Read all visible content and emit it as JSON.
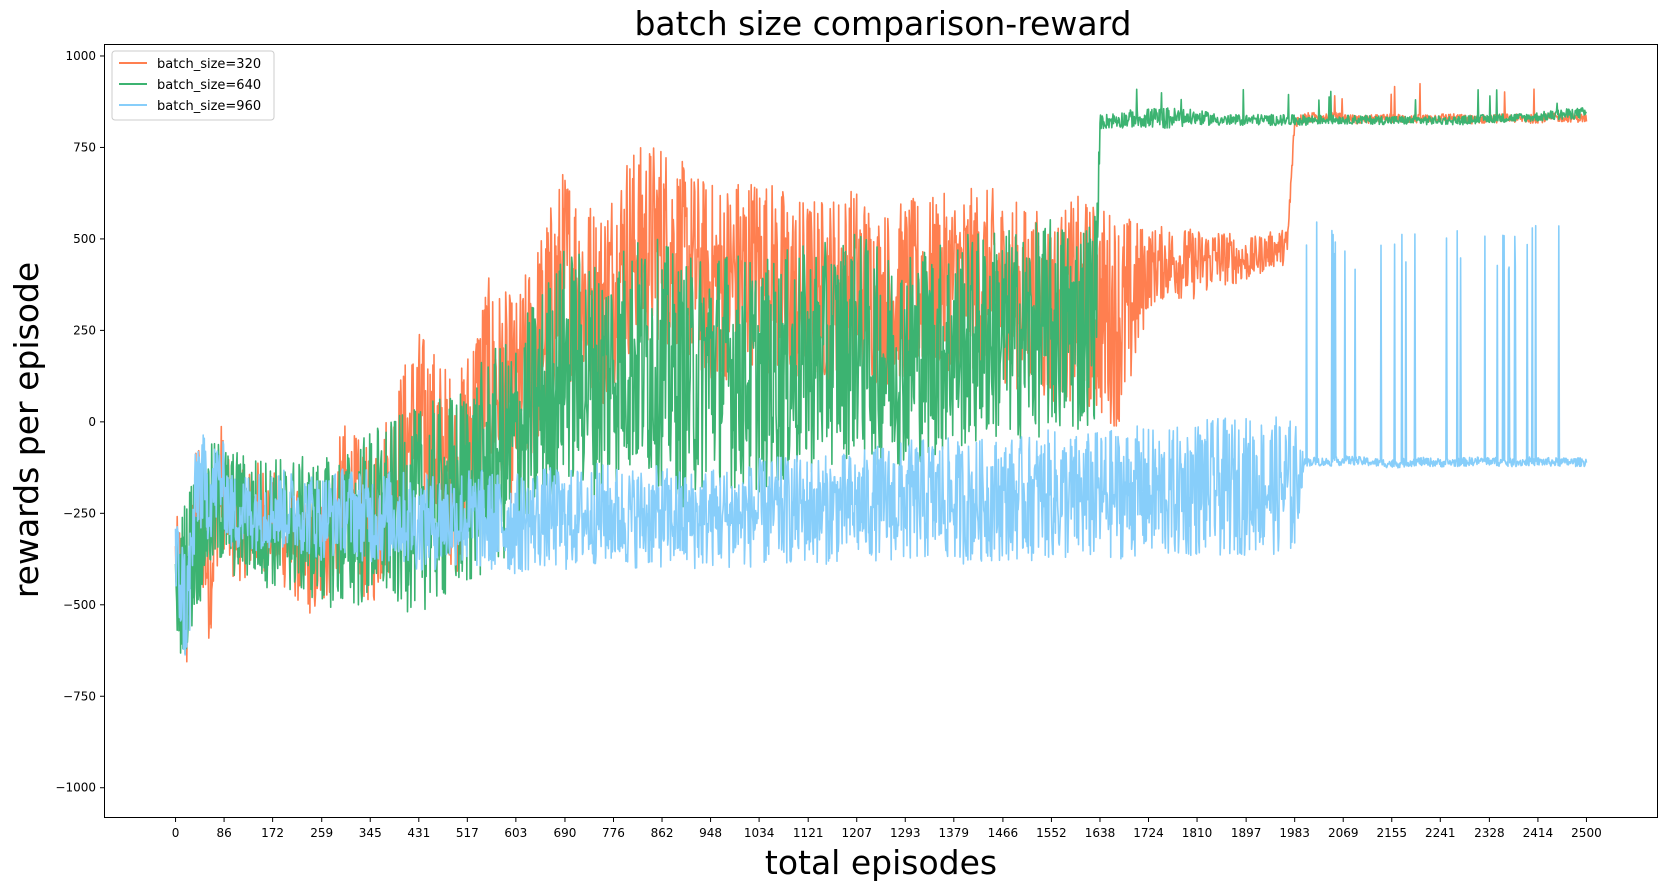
{
  "chart_data": {
    "type": "line",
    "title": "batch size comparison-reward",
    "xlabel": "total episodes",
    "ylabel": "rewards per episode",
    "xlim": [
      -125,
      2625
    ],
    "ylim": [
      -1080,
      1030
    ],
    "x_ticks": [
      0,
      86,
      172,
      259,
      345,
      431,
      517,
      603,
      690,
      776,
      862,
      948,
      1034,
      1121,
      1207,
      1293,
      1379,
      1466,
      1552,
      1638,
      1724,
      1810,
      1897,
      1983,
      2069,
      2155,
      2241,
      2328,
      2414,
      2500
    ],
    "y_ticks": [
      -1000,
      -750,
      -500,
      -250,
      0,
      250,
      500,
      750,
      1000
    ],
    "grid": false,
    "legend_position": "top-left",
    "series": [
      {
        "name": "batch_size=320",
        "color": "#FF7F50",
        "x": [
          0,
          20,
          40,
          60,
          80,
          100,
          150,
          200,
          250,
          300,
          345,
          400,
          431,
          500,
          550,
          603,
          650,
          690,
          750,
          800,
          862,
          900,
          948,
          1000,
          1034,
          1100,
          1150,
          1207,
          1250,
          1293,
          1350,
          1400,
          1450,
          1500,
          1552,
          1600,
          1638,
          1680,
          1724,
          1760,
          1800,
          1850,
          1897,
          1940,
          1970,
          1983,
          2000,
          2050,
          2100,
          2150,
          2200,
          2250,
          2300,
          2350,
          2400,
          2450,
          2500
        ],
        "values": [
          -380,
          -500,
          -200,
          -450,
          -150,
          -300,
          -250,
          -320,
          -380,
          -200,
          -300,
          -100,
          0,
          -150,
          120,
          50,
          250,
          420,
          300,
          460,
          500,
          430,
          380,
          400,
          420,
          350,
          360,
          400,
          330,
          360,
          380,
          390,
          380,
          340,
          300,
          340,
          300,
          280,
          420,
          440,
          430,
          450,
          440,
          470,
          480,
          820,
          830,
          835,
          825,
          830,
          828,
          832,
          826,
          830,
          828,
          832,
          830
        ],
        "spread": [
          130,
          200,
          180,
          160,
          160,
          150,
          150,
          150,
          170,
          200,
          220,
          250,
          260,
          270,
          280,
          290,
          290,
          290,
          290,
          290,
          280,
          280,
          280,
          280,
          270,
          270,
          260,
          250,
          250,
          250,
          240,
          250,
          260,
          260,
          270,
          280,
          300,
          300,
          110,
          100,
          100,
          80,
          60,
          50,
          50,
          15,
          15,
          12,
          12,
          12,
          12,
          12,
          12,
          12,
          12,
          12,
          12
        ]
      },
      {
        "name": "batch_size=640",
        "color": "#3CB371",
        "x": [
          0,
          20,
          40,
          60,
          80,
          100,
          150,
          200,
          259,
          300,
          345,
          400,
          431,
          500,
          550,
          603,
          650,
          690,
          750,
          800,
          862,
          900,
          948,
          1000,
          1034,
          1100,
          1150,
          1207,
          1250,
          1293,
          1350,
          1400,
          1450,
          1500,
          1552,
          1600,
          1630,
          1638,
          1700,
          1760,
          1810,
          1860,
          1920,
          1983,
          2040,
          2100,
          2160,
          2220,
          2280,
          2340,
          2400,
          2460,
          2500
        ],
        "values": [
          -500,
          -400,
          -300,
          -250,
          -220,
          -250,
          -270,
          -280,
          -300,
          -300,
          -260,
          -250,
          -240,
          -200,
          -120,
          -60,
          60,
          160,
          120,
          180,
          160,
          100,
          160,
          140,
          120,
          160,
          180,
          220,
          170,
          180,
          200,
          220,
          240,
          240,
          260,
          260,
          300,
          820,
          830,
          830,
          832,
          824,
          826,
          824,
          826,
          826,
          824,
          824,
          824,
          830,
          832,
          840,
          845
        ],
        "spread": [
          160,
          230,
          210,
          190,
          180,
          180,
          180,
          190,
          200,
          220,
          250,
          270,
          280,
          290,
          300,
          310,
          320,
          330,
          330,
          330,
          340,
          340,
          330,
          330,
          320,
          320,
          310,
          310,
          300,
          300,
          300,
          300,
          300,
          290,
          300,
          300,
          290,
          20,
          25,
          30,
          20,
          15,
          15,
          15,
          12,
          12,
          12,
          12,
          12,
          12,
          12,
          15,
          15
        ]
      },
      {
        "name": "batch_size=960",
        "color": "#87CEFA",
        "x": [
          0,
          20,
          40,
          60,
          80,
          100,
          150,
          200,
          259,
          300,
          345,
          400,
          431,
          500,
          550,
          603,
          650,
          690,
          750,
          800,
          862,
          900,
          948,
          1000,
          1034,
          1100,
          1150,
          1207,
          1250,
          1293,
          1350,
          1400,
          1450,
          1500,
          1552,
          1600,
          1650,
          1700,
          1760,
          1810,
          1860,
          1920,
          1983,
          2000,
          2020,
          2040,
          2080,
          2120,
          2160,
          2200,
          2240,
          2280,
          2320,
          2360,
          2400,
          2440,
          2500
        ],
        "values": [
          -380,
          -520,
          -150,
          -200,
          -150,
          -250,
          -240,
          -240,
          -260,
          -240,
          -260,
          -260,
          -280,
          -260,
          -270,
          -280,
          -260,
          -270,
          -250,
          -260,
          -260,
          -270,
          -260,
          -260,
          -250,
          -240,
          -240,
          -230,
          -220,
          -220,
          -210,
          -220,
          -210,
          -210,
          -200,
          -210,
          -200,
          -190,
          -200,
          -180,
          -180,
          -170,
          -180,
          -110,
          -108,
          -110,
          -105,
          -110,
          -115,
          -108,
          -112,
          -110,
          -106,
          -112,
          -108,
          -110,
          -110
        ],
        "spread": [
          140,
          180,
          150,
          130,
          120,
          110,
          110,
          110,
          120,
          120,
          130,
          130,
          130,
          140,
          140,
          140,
          140,
          140,
          140,
          140,
          140,
          140,
          140,
          140,
          150,
          150,
          150,
          150,
          160,
          170,
          170,
          170,
          170,
          170,
          180,
          180,
          180,
          180,
          180,
          190,
          190,
          190,
          190,
          12,
          12,
          12,
          12,
          12,
          12,
          12,
          12,
          12,
          12,
          12,
          12,
          12,
          12
        ]
      }
    ]
  }
}
